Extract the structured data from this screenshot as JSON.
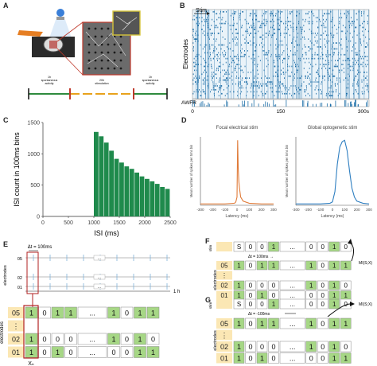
{
  "panels": {
    "a": "A",
    "b": "B",
    "c": "C",
    "d": "D",
    "e": "E",
    "f": "F",
    "g": "G"
  },
  "panel_a": {
    "timeline_labels": [
      "1h\nspontaneous\nactivity",
      "20h\nstimulation",
      "1h\nspontaneous\nactivity"
    ]
  },
  "panel_b": {
    "stim_label": "Stim",
    "ylabel": "Electrodes",
    "awfr_label": "AWFR",
    "xticks": [
      "0",
      "150",
      "300s"
    ]
  },
  "chart_data": [
    {
      "type": "bar",
      "panel": "C",
      "xlabel": "ISI (ms)",
      "ylabel": "ISI count in 100ms bins",
      "xlim": [
        0,
        2500
      ],
      "ylim": [
        0,
        1500
      ],
      "xticks": [
        0,
        500,
        1000,
        1500,
        2000,
        2500
      ],
      "yticks": [
        0,
        500,
        1000,
        1500
      ],
      "x": [
        1050,
        1150,
        1250,
        1350,
        1450,
        1550,
        1650,
        1750,
        1850,
        1950,
        2050,
        2150,
        2250,
        2350,
        2450
      ],
      "values": [
        1350,
        1280,
        1180,
        1050,
        920,
        860,
        800,
        760,
        700,
        640,
        600,
        560,
        520,
        470,
        440
      ],
      "color": "#1f8a4c"
    },
    {
      "type": "line",
      "panel": "D-left",
      "title": "Focal electrical stim",
      "xlabel": "Latency (ms)",
      "ylabel": "Mean number of spikes per 5ms bin",
      "xlim": [
        -300,
        300
      ],
      "xticks": [
        -300,
        -200,
        -100,
        0,
        100,
        200,
        300
      ],
      "x": [
        -300,
        -200,
        -100,
        -20,
        -10,
        0,
        5,
        10,
        15,
        20,
        30,
        50,
        100,
        200,
        300
      ],
      "values": [
        0.02,
        0.02,
        0.02,
        0.03,
        0.05,
        0.12,
        0.95,
        0.55,
        0.35,
        0.25,
        0.12,
        0.06,
        0.03,
        0.02,
        0.02
      ],
      "color": "#e07b39"
    },
    {
      "type": "line",
      "panel": "D-right",
      "title": "Global optogenetic stim",
      "xlabel": "Latency (ms)",
      "ylabel": "Mean number of spikes per 5ms bin",
      "xlim": [
        -300,
        300
      ],
      "xticks": [
        -300,
        -200,
        -100,
        0,
        100,
        200,
        300
      ],
      "x": [
        -300,
        -200,
        -100,
        -20,
        0,
        20,
        40,
        60,
        80,
        100,
        120,
        140,
        160,
        180,
        200,
        250,
        300
      ],
      "values": [
        0.02,
        0.02,
        0.02,
        0.03,
        0.05,
        0.2,
        0.6,
        0.85,
        0.93,
        0.95,
        0.8,
        0.5,
        0.25,
        0.12,
        0.06,
        0.03,
        0.02
      ],
      "color": "#2f7fc1"
    }
  ],
  "panel_e": {
    "dt_label": "Δt = 100ms",
    "electrodes_label": "electrodes",
    "time_end_label": "1 h",
    "row_labels_top": [
      "05",
      "02",
      "01"
    ],
    "ellipsis": "...",
    "grid_rows": [
      {
        "label": "05",
        "cells": [
          "1",
          "0",
          "1",
          "1",
          "...",
          "1",
          "0",
          "1",
          "1"
        ]
      },
      {
        "label": "⋮",
        "cells": []
      },
      {
        "label": "02",
        "cells": [
          "1",
          "0",
          "0",
          "0",
          "...",
          "1",
          "0",
          "1",
          "0"
        ]
      },
      {
        "label": "01",
        "cells": [
          "1",
          "0",
          "1",
          "0",
          "...",
          "0",
          "0",
          "1",
          "1"
        ]
      }
    ],
    "xn_label": "Xₙ"
  },
  "panel_f": {
    "stim_label": "stim",
    "stim_row": [
      "S",
      "0",
      "0",
      "1",
      "...",
      "0",
      "0",
      "1",
      "0"
    ],
    "dt_label": "Δt = 100ms →",
    "electrodes_label": "electrodes",
    "mi_label": "MI(S;X)",
    "grid_rows": [
      {
        "label": "05",
        "cells": [
          "1",
          "0",
          "1",
          "1",
          "...",
          "1",
          "0",
          "1",
          "1"
        ]
      },
      {
        "label": "⋮",
        "cells": []
      },
      {
        "label": "02",
        "cells": [
          "1",
          "0",
          "0",
          "0",
          "...",
          "1",
          "0",
          "1",
          "0"
        ]
      },
      {
        "label": "01",
        "cells": [
          "1",
          "0",
          "1",
          "0",
          "...",
          "0",
          "0",
          "1",
          "1"
        ]
      }
    ]
  },
  "panel_g": {
    "stim_label": "stim",
    "stim_row": [
      "S",
      "0",
      "0",
      "1",
      "...",
      "0",
      "0",
      "1",
      "0"
    ],
    "dt_label": "Δt = -100ms",
    "electrodes_label": "electrodes",
    "mi_label": "MI(S;X)",
    "grid_rows": [
      {
        "label": "05",
        "cells": [
          "1",
          "0",
          "1",
          "1",
          "...",
          "1",
          "0",
          "1",
          "1"
        ]
      },
      {
        "label": "⋮",
        "cells": []
      },
      {
        "label": "02",
        "cells": [
          "1",
          "0",
          "0",
          "0",
          "...",
          "1",
          "0",
          "1",
          "0"
        ]
      },
      {
        "label": "01",
        "cells": [
          "1",
          "0",
          "1",
          "0",
          "...",
          "0",
          "0",
          "1",
          "1"
        ]
      }
    ]
  }
}
